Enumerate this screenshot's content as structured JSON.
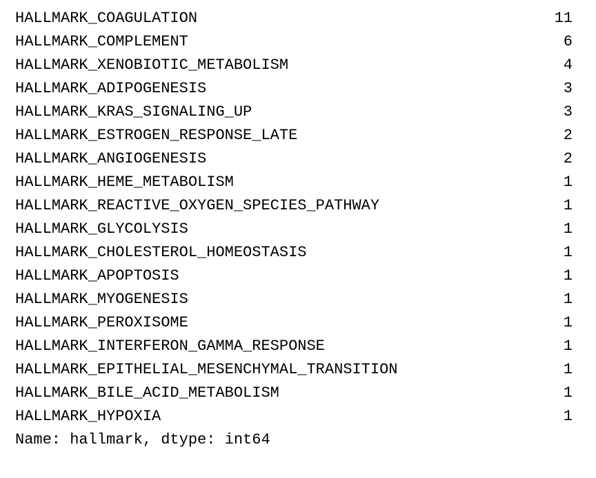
{
  "series": {
    "rows": [
      {
        "label": "HALLMARK_COAGULATION",
        "count": "11"
      },
      {
        "label": "HALLMARK_COMPLEMENT",
        "count": "6"
      },
      {
        "label": "HALLMARK_XENOBIOTIC_METABOLISM",
        "count": "4"
      },
      {
        "label": "HALLMARK_ADIPOGENESIS",
        "count": "3"
      },
      {
        "label": "HALLMARK_KRAS_SIGNALING_UP",
        "count": "3"
      },
      {
        "label": "HALLMARK_ESTROGEN_RESPONSE_LATE",
        "count": "2"
      },
      {
        "label": "HALLMARK_ANGIOGENESIS",
        "count": "2"
      },
      {
        "label": "HALLMARK_HEME_METABOLISM",
        "count": "1"
      },
      {
        "label": "HALLMARK_REACTIVE_OXYGEN_SPECIES_PATHWAY",
        "count": "1"
      },
      {
        "label": "HALLMARK_GLYCOLYSIS",
        "count": "1"
      },
      {
        "label": "HALLMARK_CHOLESTEROL_HOMEOSTASIS",
        "count": "1"
      },
      {
        "label": "HALLMARK_APOPTOSIS",
        "count": "1"
      },
      {
        "label": "HALLMARK_MYOGENESIS",
        "count": "1"
      },
      {
        "label": "HALLMARK_PEROXISOME",
        "count": "1"
      },
      {
        "label": "HALLMARK_INTERFERON_GAMMA_RESPONSE",
        "count": "1"
      },
      {
        "label": "HALLMARK_EPITHELIAL_MESENCHYMAL_TRANSITION",
        "count": "1"
      },
      {
        "label": "HALLMARK_BILE_ACID_METABOLISM",
        "count": "1"
      },
      {
        "label": "HALLMARK_HYPOXIA",
        "count": "1"
      }
    ],
    "footer": "Name: hallmark, dtype: int64"
  }
}
